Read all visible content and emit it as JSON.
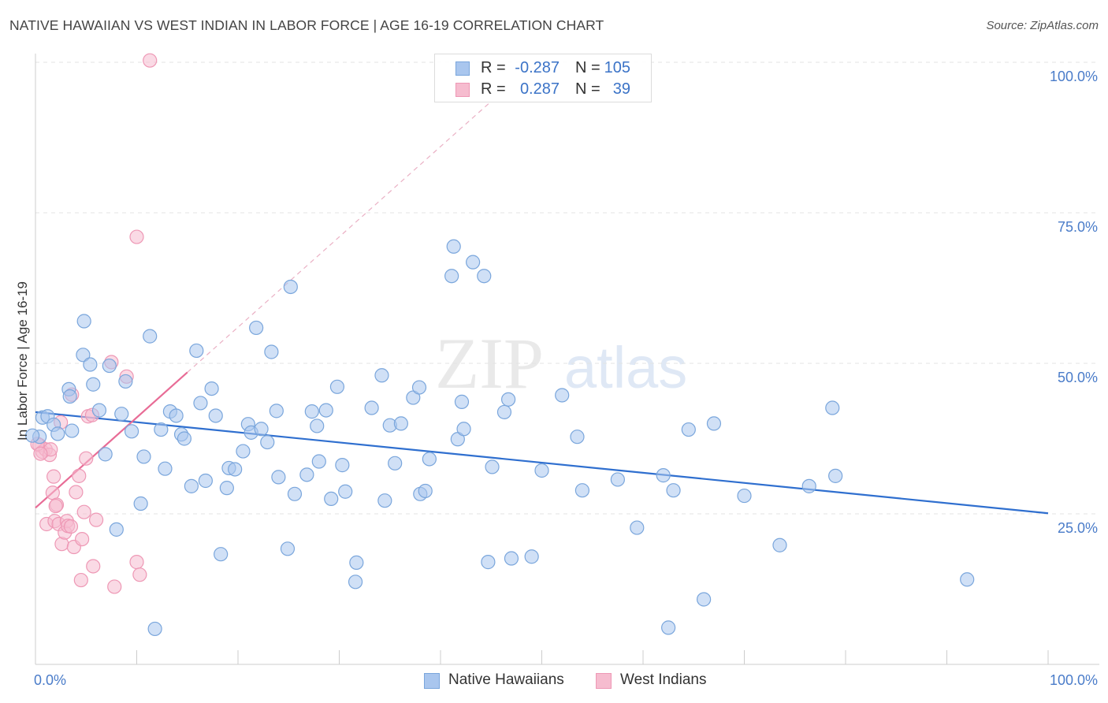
{
  "title": "NATIVE HAWAIIAN VS WEST INDIAN IN LABOR FORCE | AGE 16-19 CORRELATION CHART",
  "source": "Source: ZipAtlas.com",
  "watermark": {
    "zip": "ZIP",
    "atlas": "atlas"
  },
  "colors": {
    "blue_fill": "#a9c6ee",
    "blue_stroke": "#7aa6dc",
    "blue_line": "#2f6fcf",
    "pink_fill": "#f6bccf",
    "pink_stroke": "#ee98b5",
    "pink_line": "#e86c96",
    "tick_text": "#4a7cc9",
    "grid": "#e3e3e3"
  },
  "legend_top": {
    "rows": [
      {
        "series": "native_hawaiians",
        "r_label": "R =",
        "r_value": "-0.287",
        "n_label": "N =",
        "n_value": "105"
      },
      {
        "series": "west_indians",
        "r_label": "R =",
        "r_value": "0.287",
        "n_label": "N =",
        "n_value": "39"
      }
    ]
  },
  "legend_bottom": {
    "items": [
      "Native Hawaiians",
      "West Indians"
    ]
  },
  "chart_data": {
    "type": "scatter",
    "title": "NATIVE HAWAIIAN VS WEST INDIAN IN LABOR FORCE | AGE 16-19 CORRELATION CHART",
    "xlabel": "",
    "ylabel": "In Labor Force | Age 16-19",
    "xlim": [
      0,
      100
    ],
    "ylim": [
      0,
      102
    ],
    "x_tick_labels": [
      "0.0%",
      "100.0%"
    ],
    "y_ticks": [
      25,
      50,
      75,
      100
    ],
    "y_tick_labels": [
      "25.0%",
      "50.0%",
      "75.0%",
      "100.0%"
    ],
    "grid": true,
    "legend": "bottom-center",
    "series": [
      {
        "name": "Native Hawaiians",
        "color": "#a9c6ee",
        "trend": {
          "x": [
            0,
            100
          ],
          "y": [
            41.9,
            25.1
          ],
          "style": "solid"
        },
        "points": [
          [
            0.4,
            37.8
          ],
          [
            0.7,
            41.0
          ],
          [
            1.2,
            41.2
          ],
          [
            1.8,
            39.8
          ],
          [
            2.2,
            38.3
          ],
          [
            3.3,
            45.7
          ],
          [
            3.4,
            44.5
          ],
          [
            3.6,
            38.8
          ],
          [
            4.7,
            51.4
          ],
          [
            4.8,
            57.0
          ],
          [
            5.4,
            49.8
          ],
          [
            5.7,
            46.5
          ],
          [
            6.3,
            42.2
          ],
          [
            6.9,
            34.9
          ],
          [
            7.3,
            49.6
          ],
          [
            8.0,
            22.4
          ],
          [
            8.5,
            41.6
          ],
          [
            8.9,
            47.0
          ],
          [
            9.5,
            38.7
          ],
          [
            10.4,
            26.7
          ],
          [
            10.7,
            34.5
          ],
          [
            11.3,
            54.5
          ],
          [
            11.8,
            5.9
          ],
          [
            12.4,
            39.0
          ],
          [
            12.8,
            32.5
          ],
          [
            13.3,
            42.0
          ],
          [
            13.9,
            41.3
          ],
          [
            14.4,
            38.2
          ],
          [
            14.7,
            37.5
          ],
          [
            15.4,
            29.6
          ],
          [
            15.9,
            52.1
          ],
          [
            16.3,
            43.4
          ],
          [
            16.8,
            30.5
          ],
          [
            17.4,
            45.8
          ],
          [
            17.8,
            41.3
          ],
          [
            18.3,
            18.3
          ],
          [
            18.9,
            29.3
          ],
          [
            19.1,
            32.6
          ],
          [
            19.7,
            32.4
          ],
          [
            20.5,
            35.4
          ],
          [
            21.0,
            39.9
          ],
          [
            21.3,
            38.5
          ],
          [
            21.8,
            55.9
          ],
          [
            22.3,
            39.1
          ],
          [
            22.9,
            36.9
          ],
          [
            23.3,
            51.9
          ],
          [
            23.8,
            42.1
          ],
          [
            24.0,
            31.1
          ],
          [
            24.9,
            19.2
          ],
          [
            25.2,
            62.7
          ],
          [
            25.6,
            28.3
          ],
          [
            26.8,
            31.5
          ],
          [
            27.3,
            42.0
          ],
          [
            27.8,
            39.6
          ],
          [
            28.0,
            33.7
          ],
          [
            28.7,
            42.2
          ],
          [
            29.2,
            27.5
          ],
          [
            29.8,
            46.1
          ],
          [
            30.3,
            33.1
          ],
          [
            30.6,
            28.7
          ],
          [
            31.6,
            13.7
          ],
          [
            31.7,
            16.9
          ],
          [
            33.2,
            42.6
          ],
          [
            34.2,
            48.0
          ],
          [
            34.5,
            27.2
          ],
          [
            35.0,
            39.7
          ],
          [
            35.5,
            33.4
          ],
          [
            36.1,
            40.0
          ],
          [
            37.3,
            44.3
          ],
          [
            37.9,
            46.0
          ],
          [
            38.0,
            28.3
          ],
          [
            38.5,
            28.8
          ],
          [
            38.9,
            34.1
          ],
          [
            41.1,
            64.5
          ],
          [
            41.3,
            69.4
          ],
          [
            41.7,
            37.4
          ],
          [
            42.1,
            43.6
          ],
          [
            42.3,
            39.1
          ],
          [
            43.2,
            66.8
          ],
          [
            44.3,
            64.5
          ],
          [
            44.7,
            17.0
          ],
          [
            45.1,
            32.8
          ],
          [
            46.3,
            41.9
          ],
          [
            46.7,
            44.0
          ],
          [
            47.0,
            17.6
          ],
          [
            49.0,
            17.9
          ],
          [
            50.0,
            32.2
          ],
          [
            52.0,
            44.7
          ],
          [
            53.5,
            37.8
          ],
          [
            54.0,
            28.9
          ],
          [
            57.5,
            30.7
          ],
          [
            59.4,
            22.7
          ],
          [
            62.0,
            31.4
          ],
          [
            62.5,
            6.1
          ],
          [
            63.0,
            28.9
          ],
          [
            64.5,
            39.0
          ],
          [
            66.0,
            10.8
          ],
          [
            67.0,
            40.0
          ],
          [
            70.0,
            28.0
          ],
          [
            73.5,
            19.8
          ],
          [
            76.4,
            29.6
          ],
          [
            78.7,
            42.6
          ],
          [
            79.0,
            31.3
          ],
          [
            92.0,
            14.1
          ],
          [
            -0.3,
            38.0
          ]
        ]
      },
      {
        "name": "West Indians",
        "color": "#f6bccf",
        "trend": {
          "x": [
            0,
            15
          ],
          "y": [
            26.0,
            48.5
          ],
          "style": "solid",
          "extended_to": [
            45,
            93.5
          ],
          "extended_style": "dashed"
        },
        "points": [
          [
            0.4,
            36.4
          ],
          [
            0.7,
            35.3
          ],
          [
            1.0,
            35.7
          ],
          [
            1.1,
            23.3
          ],
          [
            1.4,
            34.8
          ],
          [
            1.5,
            35.7
          ],
          [
            1.7,
            28.5
          ],
          [
            1.8,
            31.2
          ],
          [
            1.9,
            23.8
          ],
          [
            2.1,
            26.5
          ],
          [
            2.3,
            23.3
          ],
          [
            2.5,
            40.2
          ],
          [
            2.6,
            20.0
          ],
          [
            2.9,
            21.9
          ],
          [
            3.1,
            23.8
          ],
          [
            3.2,
            23.0
          ],
          [
            3.5,
            22.9
          ],
          [
            3.6,
            44.8
          ],
          [
            3.8,
            19.5
          ],
          [
            4.0,
            28.6
          ],
          [
            4.3,
            31.3
          ],
          [
            4.5,
            14.0
          ],
          [
            4.6,
            20.8
          ],
          [
            4.8,
            25.3
          ],
          [
            5.0,
            34.2
          ],
          [
            5.2,
            41.2
          ],
          [
            5.6,
            41.4
          ],
          [
            5.7,
            16.3
          ],
          [
            6.0,
            24.0
          ],
          [
            7.5,
            50.2
          ],
          [
            7.8,
            12.9
          ],
          [
            9.0,
            47.8
          ],
          [
            10.0,
            17.0
          ],
          [
            10.3,
            14.9
          ],
          [
            11.3,
            100.3
          ],
          [
            0.2,
            36.6
          ],
          [
            0.5,
            35.0
          ],
          [
            10.0,
            71.0
          ],
          [
            2.0,
            26.3
          ]
        ]
      }
    ]
  }
}
